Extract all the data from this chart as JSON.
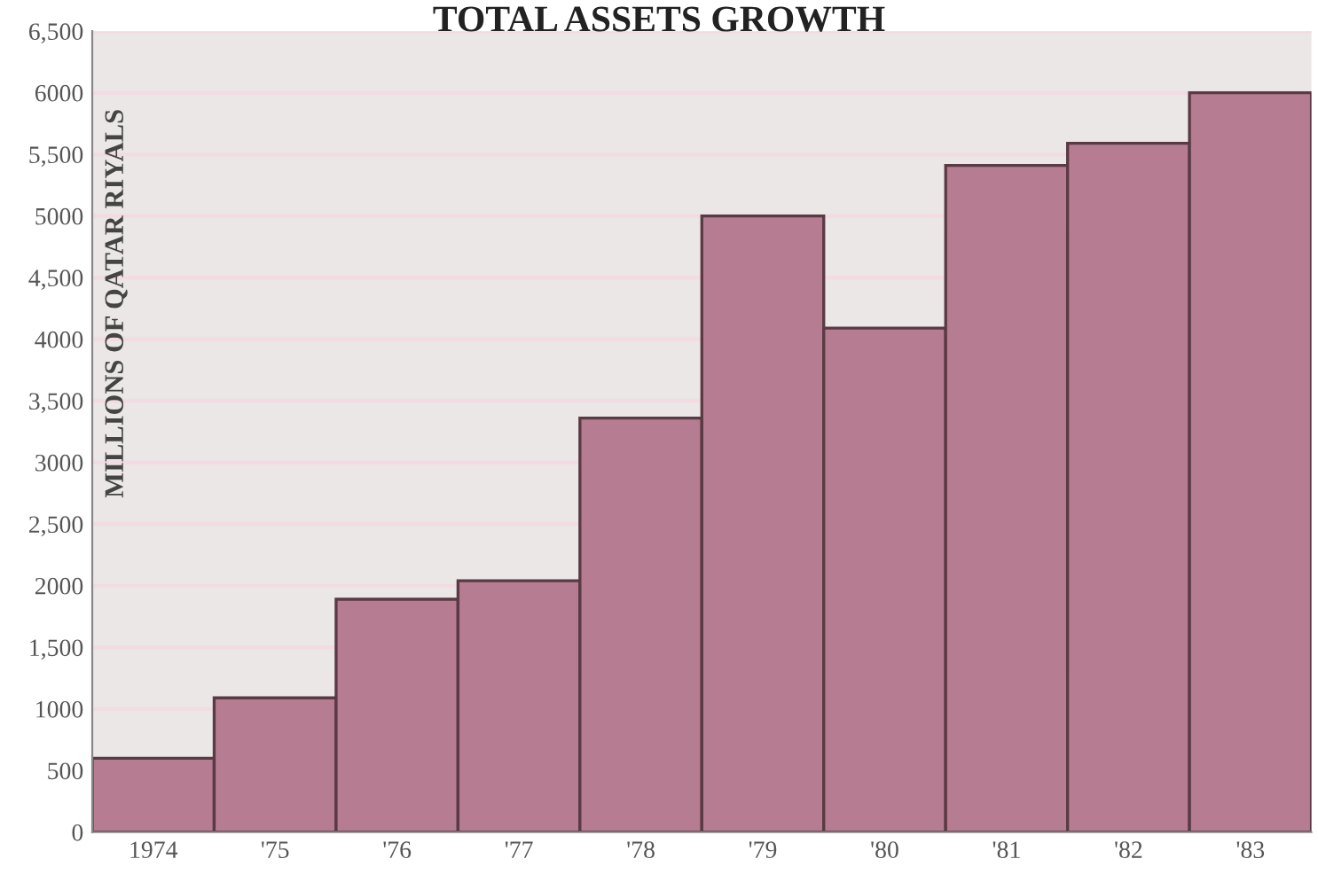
{
  "chart_data": {
    "type": "bar",
    "title": "TOTAL ASSETS GROWTH",
    "ylabel": "MILLIONS OF QATAR RIYALS",
    "categories": [
      "1974",
      "'75",
      "'76",
      "'77",
      "'78",
      "'79",
      "'80",
      "'81",
      "'82",
      "'83"
    ],
    "values": [
      600,
      1090,
      1890,
      2040,
      3360,
      5000,
      4090,
      5410,
      5590,
      6000
    ],
    "color": "#b67c92",
    "ylim": [
      0,
      6500
    ],
    "yticks": [
      0,
      500,
      {
        "value": 1000,
        "label": "1000"
      },
      {
        "value": 1500,
        "label": "1,500"
      },
      {
        "value": 2000,
        "label": "2000"
      },
      {
        "value": 2500,
        "label": "2,500"
      },
      {
        "value": 3000,
        "label": "3000"
      },
      {
        "value": 3500,
        "label": "3,500"
      },
      {
        "value": 4000,
        "label": "4000"
      },
      {
        "value": 4500,
        "label": "4,500"
      },
      {
        "value": 5000,
        "label": "5000"
      },
      {
        "value": 5500,
        "label": "5,500"
      },
      {
        "value": 6000,
        "label": "6000"
      },
      {
        "value": 6500,
        "label": "6,500"
      }
    ],
    "grid": "y"
  }
}
